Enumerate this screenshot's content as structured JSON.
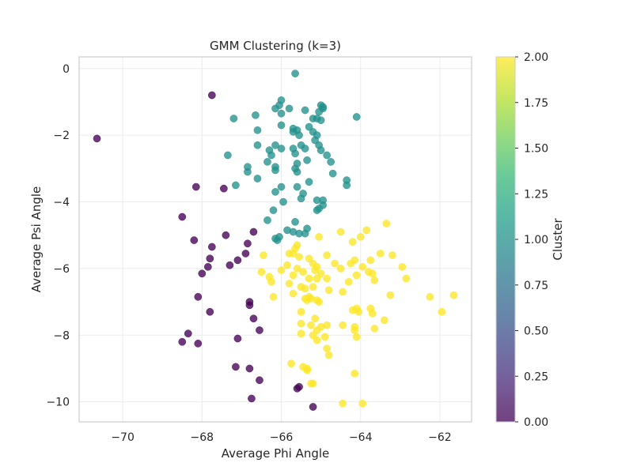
{
  "chart_data": {
    "type": "scatter",
    "title": "GMM Clustering (k=3)",
    "xlabel": "Average Phi Angle",
    "ylabel": "Average Psi Angle",
    "xlim": [
      -71.1,
      -61.2
    ],
    "ylim": [
      -10.6,
      0.35
    ],
    "x_ticks": [
      -70,
      -68,
      -66,
      -64,
      -62
    ],
    "y_ticks": [
      0,
      -2,
      -4,
      -6,
      -8,
      -10
    ],
    "grid": true,
    "colorbar": {
      "label": "Cluster",
      "range": [
        0,
        2
      ],
      "ticks": [
        "0.00",
        "0.25",
        "0.50",
        "0.75",
        "1.00",
        "1.25",
        "1.50",
        "1.75",
        "2.00"
      ],
      "colormap": "viridis"
    },
    "series": [
      {
        "cluster": 0,
        "color": "#440154",
        "points": [
          [
            -70.65,
            -2.1
          ],
          [
            -68.15,
            -3.55
          ],
          [
            -68.5,
            -4.45
          ],
          [
            -68.2,
            -5.15
          ],
          [
            -67.75,
            -5.35
          ],
          [
            -67.8,
            -5.7
          ],
          [
            -67.85,
            -5.95
          ],
          [
            -68.0,
            -6.15
          ],
          [
            -67.3,
            -5.9
          ],
          [
            -67.1,
            -5.75
          ],
          [
            -66.85,
            -5.25
          ],
          [
            -66.7,
            -4.9
          ],
          [
            -66.9,
            -5.55
          ],
          [
            -67.4,
            -5.0
          ],
          [
            -68.1,
            -6.85
          ],
          [
            -67.8,
            -7.3
          ],
          [
            -66.8,
            -7.0
          ],
          [
            -66.8,
            -7.1
          ],
          [
            -66.7,
            -7.5
          ],
          [
            -66.55,
            -7.85
          ],
          [
            -68.35,
            -7.95
          ],
          [
            -68.5,
            -8.2
          ],
          [
            -68.1,
            -8.25
          ],
          [
            -67.1,
            -8.1
          ],
          [
            -67.15,
            -8.95
          ],
          [
            -66.8,
            -9.0
          ],
          [
            -66.55,
            -9.35
          ],
          [
            -66.75,
            -9.9
          ],
          [
            -65.55,
            -9.55
          ],
          [
            -65.6,
            -9.6
          ],
          [
            -65.2,
            -10.15
          ],
          [
            -67.75,
            -0.8
          ],
          [
            -67.45,
            -3.6
          ]
        ]
      },
      {
        "cluster": 1,
        "color": "#21918c",
        "points": [
          [
            -65.65,
            -0.15
          ],
          [
            -66.0,
            -0.95
          ],
          [
            -66.05,
            -1.1
          ],
          [
            -66.15,
            -1.2
          ],
          [
            -65.8,
            -1.2
          ],
          [
            -66.0,
            -1.35
          ],
          [
            -65.4,
            -1.25
          ],
          [
            -66.65,
            -1.4
          ],
          [
            -67.2,
            -1.5
          ],
          [
            -65.2,
            -1.5
          ],
          [
            -65.0,
            -1.1
          ],
          [
            -64.95,
            -1.15
          ],
          [
            -64.95,
            -1.2
          ],
          [
            -65.05,
            -1.3
          ],
          [
            -65.1,
            -1.5
          ],
          [
            -65.0,
            -1.55
          ],
          [
            -64.1,
            -1.45
          ],
          [
            -66.6,
            -1.85
          ],
          [
            -66.0,
            -1.7
          ],
          [
            -65.7,
            -1.8
          ],
          [
            -65.6,
            -1.85
          ],
          [
            -65.7,
            -1.9
          ],
          [
            -65.55,
            -2.0
          ],
          [
            -65.3,
            -1.75
          ],
          [
            -65.2,
            -1.9
          ],
          [
            -65.1,
            -2.0
          ],
          [
            -65.15,
            -2.15
          ],
          [
            -65.05,
            -2.3
          ],
          [
            -65.0,
            -2.45
          ],
          [
            -64.85,
            -2.6
          ],
          [
            -64.75,
            -2.8
          ],
          [
            -64.7,
            -3.15
          ],
          [
            -64.35,
            -3.35
          ],
          [
            -64.35,
            -3.5
          ],
          [
            -66.6,
            -2.3
          ],
          [
            -66.3,
            -2.45
          ],
          [
            -66.25,
            -2.6
          ],
          [
            -66.15,
            -2.3
          ],
          [
            -66.0,
            -2.4
          ],
          [
            -65.7,
            -2.4
          ],
          [
            -65.5,
            -2.3
          ],
          [
            -65.4,
            -2.4
          ],
          [
            -65.65,
            -2.55
          ],
          [
            -65.6,
            -2.85
          ],
          [
            -65.65,
            -3.0
          ],
          [
            -65.6,
            -3.1
          ],
          [
            -65.35,
            -2.75
          ],
          [
            -66.35,
            -2.8
          ],
          [
            -66.15,
            -2.95
          ],
          [
            -66.15,
            -3.05
          ],
          [
            -66.6,
            -3.3
          ],
          [
            -66.85,
            -2.95
          ],
          [
            -66.85,
            -3.1
          ],
          [
            -67.35,
            -2.6
          ],
          [
            -67.15,
            -3.5
          ],
          [
            -66.0,
            -3.55
          ],
          [
            -65.6,
            -3.55
          ],
          [
            -65.3,
            -3.4
          ],
          [
            -66.15,
            -3.7
          ],
          [
            -65.45,
            -3.75
          ],
          [
            -65.5,
            -3.9
          ],
          [
            -65.1,
            -3.95
          ],
          [
            -64.95,
            -3.95
          ],
          [
            -64.95,
            -4.1
          ],
          [
            -65.05,
            -4.2
          ],
          [
            -65.1,
            -4.25
          ],
          [
            -65.95,
            -4.0
          ],
          [
            -66.2,
            -4.25
          ],
          [
            -66.35,
            -4.55
          ],
          [
            -65.65,
            -4.6
          ],
          [
            -65.85,
            -4.85
          ],
          [
            -65.7,
            -4.9
          ],
          [
            -65.55,
            -4.95
          ],
          [
            -65.35,
            -4.8
          ],
          [
            -65.4,
            -4.95
          ],
          [
            -66.05,
            -5.05
          ],
          [
            -66.1,
            -5.15
          ],
          [
            -66.15,
            -5.1
          ]
        ]
      },
      {
        "cluster": 2,
        "color": "#fde725",
        "points": [
          [
            -64.2,
            -5.2
          ],
          [
            -63.85,
            -4.85
          ],
          [
            -63.35,
            -4.65
          ],
          [
            -64.5,
            -4.9
          ],
          [
            -64.0,
            -5.05
          ],
          [
            -65.05,
            -5.05
          ],
          [
            -65.6,
            -5.3
          ],
          [
            -65.65,
            -5.4
          ],
          [
            -65.7,
            -5.55
          ],
          [
            -65.55,
            -5.65
          ],
          [
            -65.8,
            -5.55
          ],
          [
            -66.45,
            -5.6
          ],
          [
            -65.3,
            -5.7
          ],
          [
            -65.2,
            -5.85
          ],
          [
            -65.1,
            -5.95
          ],
          [
            -64.85,
            -5.6
          ],
          [
            -64.65,
            -5.85
          ],
          [
            -64.5,
            -6.0
          ],
          [
            -64.25,
            -5.85
          ],
          [
            -64.15,
            -5.75
          ],
          [
            -63.95,
            -5.95
          ],
          [
            -63.75,
            -5.75
          ],
          [
            -63.5,
            -5.55
          ],
          [
            -63.2,
            -5.6
          ],
          [
            -62.95,
            -5.95
          ],
          [
            -63.8,
            -6.1
          ],
          [
            -63.7,
            -6.15
          ],
          [
            -63.65,
            -6.35
          ],
          [
            -64.1,
            -6.2
          ],
          [
            -64.3,
            -6.4
          ],
          [
            -64.45,
            -6.7
          ],
          [
            -64.85,
            -6.3
          ],
          [
            -65.0,
            -6.15
          ],
          [
            -65.15,
            -6.05
          ],
          [
            -65.1,
            -6.3
          ],
          [
            -65.45,
            -6.1
          ],
          [
            -65.3,
            -6.3
          ],
          [
            -65.6,
            -6.0
          ],
          [
            -65.7,
            -6.2
          ],
          [
            -65.85,
            -5.9
          ],
          [
            -66.0,
            -6.05
          ],
          [
            -66.3,
            -6.25
          ],
          [
            -66.25,
            -6.4
          ],
          [
            -66.5,
            -6.1
          ],
          [
            -65.8,
            -6.45
          ],
          [
            -65.5,
            -6.55
          ],
          [
            -65.4,
            -6.6
          ],
          [
            -65.2,
            -6.55
          ],
          [
            -66.2,
            -6.85
          ],
          [
            -65.7,
            -6.75
          ],
          [
            -65.4,
            -6.9
          ],
          [
            -65.35,
            -6.95
          ],
          [
            -65.25,
            -6.9
          ],
          [
            -65.05,
            -7.0
          ],
          [
            -65.1,
            -6.95
          ],
          [
            -64.8,
            -6.65
          ],
          [
            -65.5,
            -7.3
          ],
          [
            -64.2,
            -7.25
          ],
          [
            -64.1,
            -7.2
          ],
          [
            -64.05,
            -7.3
          ],
          [
            -63.75,
            -7.2
          ],
          [
            -63.7,
            -7.35
          ],
          [
            -63.65,
            -7.8
          ],
          [
            -63.25,
            -6.8
          ],
          [
            -63.4,
            -7.55
          ],
          [
            -64.45,
            -7.7
          ],
          [
            -64.15,
            -7.75
          ],
          [
            -64.15,
            -7.85
          ],
          [
            -64.1,
            -8.05
          ],
          [
            -64.85,
            -7.7
          ],
          [
            -65.0,
            -7.75
          ],
          [
            -65.1,
            -7.85
          ],
          [
            -65.25,
            -7.7
          ],
          [
            -65.15,
            -7.5
          ],
          [
            -64.9,
            -8.05
          ],
          [
            -65.1,
            -8.15
          ],
          [
            -65.2,
            -8.0
          ],
          [
            -65.5,
            -7.95
          ],
          [
            -65.5,
            -7.65
          ],
          [
            -64.85,
            -8.4
          ],
          [
            -64.8,
            -8.6
          ],
          [
            -65.75,
            -8.85
          ],
          [
            -65.45,
            -8.95
          ],
          [
            -65.35,
            -9.0
          ],
          [
            -65.35,
            -9.05
          ],
          [
            -65.2,
            -9.45
          ],
          [
            -65.25,
            -9.45
          ],
          [
            -64.15,
            -9.15
          ],
          [
            -64.45,
            -10.05
          ],
          [
            -63.95,
            -10.05
          ],
          [
            -62.25,
            -6.85
          ],
          [
            -61.65,
            -6.8
          ],
          [
            -61.95,
            -7.3
          ],
          [
            -62.85,
            -6.3
          ],
          [
            -65.3,
            -6.85
          ]
        ]
      }
    ]
  }
}
